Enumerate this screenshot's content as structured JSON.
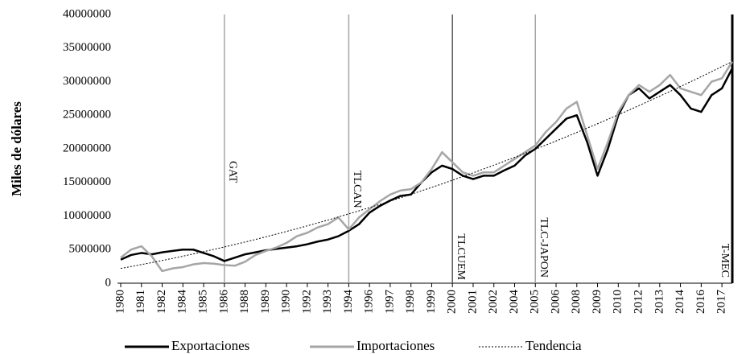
{
  "chart_data": {
    "type": "line",
    "ylabel": "Miles de dólares",
    "categories": [
      "1980",
      null,
      "1981",
      null,
      "1982",
      null,
      "1984",
      null,
      "1985",
      null,
      "1986",
      null,
      "1988",
      null,
      "1989",
      null,
      "1990",
      null,
      "1992",
      null,
      "1993",
      null,
      "1994",
      null,
      "1996",
      null,
      "1997",
      null,
      "1998",
      null,
      "1999",
      null,
      "2000",
      null,
      "2001",
      null,
      "2002",
      null,
      "2004",
      null,
      "2005",
      null,
      "2006",
      null,
      "2008",
      null,
      "2009",
      null,
      "2010",
      null,
      "2012",
      null,
      "2013",
      null,
      "2014",
      null,
      "2016",
      null,
      "2017",
      null
    ],
    "series": [
      {
        "name": "Exportaciones",
        "color": "#000000",
        "style": "solid",
        "values": [
          3500000,
          4200000,
          4500000,
          4300000,
          4600000,
          4800000,
          5000000,
          5000000,
          4500000,
          4000000,
          3300000,
          3800000,
          4300000,
          4600000,
          4900000,
          5100000,
          5300000,
          5500000,
          5800000,
          6200000,
          6500000,
          7000000,
          7800000,
          8800000,
          10500000,
          11500000,
          12300000,
          13000000,
          13200000,
          15000000,
          16500000,
          17500000,
          17000000,
          16000000,
          15500000,
          16000000,
          16000000,
          16800000,
          17500000,
          19000000,
          20000000,
          21500000,
          23000000,
          24500000,
          25000000,
          21000000,
          16000000,
          20000000,
          25000000,
          28000000,
          29000000,
          27500000,
          28500000,
          29500000,
          28000000,
          26000000,
          25500000,
          28000000,
          29000000,
          32000000
        ]
      },
      {
        "name": "Importaciones",
        "color": "#a6a6a6",
        "style": "solid",
        "values": [
          3800000,
          5000000,
          5500000,
          4000000,
          1800000,
          2200000,
          2400000,
          2800000,
          3000000,
          2900000,
          2700000,
          2600000,
          3200000,
          4200000,
          4800000,
          5300000,
          6000000,
          7000000,
          7500000,
          8300000,
          8800000,
          9800000,
          8000000,
          9800000,
          11000000,
          12200000,
          13200000,
          13800000,
          14000000,
          15000000,
          17000000,
          19500000,
          18000000,
          16500000,
          16000000,
          16500000,
          16500000,
          17500000,
          18500000,
          19500000,
          20500000,
          22500000,
          24000000,
          26000000,
          27000000,
          22000000,
          17000000,
          21000000,
          25500000,
          28000000,
          29500000,
          28500000,
          29500000,
          31000000,
          29000000,
          28500000,
          28000000,
          30000000,
          30500000,
          33000000
        ]
      },
      {
        "name": "Tendencia",
        "color": "#000000",
        "style": "dotted",
        "values": [
          2200000,
          2480000,
          2770000,
          3070000,
          3380000,
          3690000,
          4020000,
          4350000,
          4690000,
          5040000,
          5390000,
          5760000,
          6130000,
          6510000,
          6900000,
          7300000,
          7710000,
          8120000,
          8540000,
          8970000,
          9410000,
          9860000,
          10320000,
          10780000,
          11250000,
          11730000,
          12220000,
          12720000,
          13230000,
          13740000,
          14260000,
          14790000,
          15330000,
          15880000,
          16430000,
          17000000,
          17570000,
          18150000,
          18740000,
          19330000,
          19940000,
          20550000,
          21170000,
          21800000,
          22440000,
          23090000,
          23740000,
          24400000,
          25070000,
          25750000,
          26440000,
          27140000,
          27840000,
          28550000,
          29270000,
          30000000,
          30740000,
          31490000,
          32240000,
          33000000
        ]
      }
    ],
    "annotations": [
      {
        "label": "GAT",
        "category": "1986",
        "color": "#a6a6a6"
      },
      {
        "label": "TLCAN",
        "category": "1994",
        "color": "#a6a6a6"
      },
      {
        "label": "TLCUEM",
        "category": "2000",
        "color": "#595959"
      },
      {
        "label": "TLC-JAPON",
        "category": "2005",
        "color": "#a6a6a6"
      },
      {
        "label": "T-MEC",
        "category": null,
        "color": "#000000"
      }
    ],
    "ylim": [
      0,
      40000000
    ],
    "yticks": [
      0,
      5000000,
      10000000,
      15000000,
      20000000,
      25000000,
      30000000,
      35000000,
      40000000
    ],
    "grid": false,
    "legend": "bottom"
  }
}
